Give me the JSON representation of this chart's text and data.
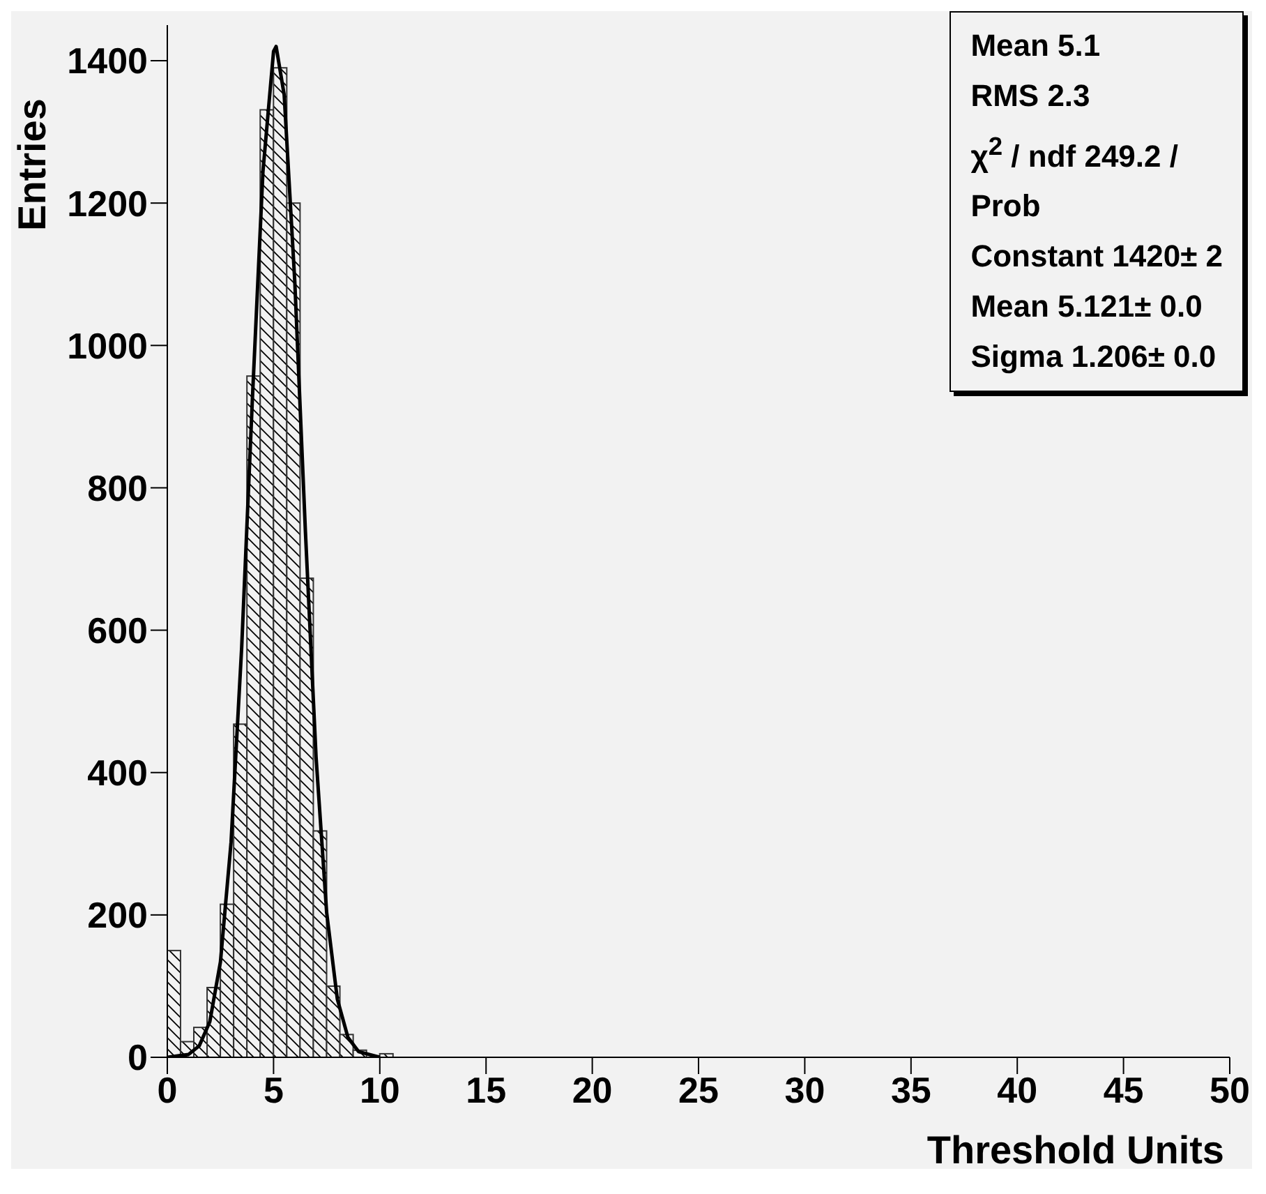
{
  "chart_data": {
    "type": "histogram",
    "xlabel": "Threshold Units",
    "ylabel": "Entries",
    "bins": [
      0,
      0.625,
      1.25,
      1.875,
      2.5,
      3.125,
      3.75,
      4.375,
      5,
      5.625,
      6.25,
      6.875,
      7.5,
      8.125,
      8.75,
      9.375,
      10,
      10.625,
      11.25,
      11.875,
      12.5,
      13.125,
      13.75,
      14.375,
      15,
      15.625,
      16.25,
      16.875,
      17.5,
      18.125,
      18.75,
      19.375,
      20,
      20.625,
      21.25,
      21.875,
      22.5,
      23.125,
      23.75,
      24.375,
      25,
      25.625,
      26.25,
      26.875,
      27.5,
      28.125,
      28.75,
      29.375,
      30,
      30.625,
      31.25,
      31.875,
      32.5,
      33.125,
      33.75,
      34.375,
      35,
      35.625,
      36.25,
      36.875,
      37.5,
      38.125,
      38.75,
      39.375,
      40,
      40.625,
      41.25,
      41.875,
      42.5,
      43.125,
      43.75,
      44.375,
      45,
      45.625,
      46.25,
      46.875,
      47.5,
      48.125,
      48.75,
      49.375,
      50
    ],
    "values": [
      150,
      22,
      42,
      98,
      215,
      468,
      957,
      1331,
      1390,
      1200,
      673,
      318,
      100,
      32,
      10,
      null,
      5,
      0,
      0,
      0,
      0,
      0,
      0,
      0,
      0,
      0,
      0,
      0,
      0,
      0,
      0,
      0,
      0,
      0,
      0,
      0,
      0,
      0,
      0,
      0,
      0,
      0,
      0,
      0,
      0,
      0,
      0,
      0,
      0,
      0,
      0,
      0,
      0,
      0,
      0,
      0,
      0,
      0,
      0,
      0,
      0,
      0,
      0,
      0,
      0,
      0,
      0,
      0,
      0,
      0,
      0,
      0,
      0,
      0,
      0,
      0,
      0,
      0,
      0,
      0
    ],
    "color": "#333333",
    "series": [
      {
        "type": "line",
        "color": "#000000",
        "x": [
          0,
          1,
          1.5,
          2,
          2.5,
          3,
          3.5,
          4,
          4.5,
          5,
          5.121,
          5.5,
          6,
          6.5,
          7,
          7.5,
          8,
          8.5,
          9,
          10
        ],
        "values": [
          0,
          4,
          16,
          50,
          134,
          302,
          576,
          922,
          1244,
          1413,
          1420,
          1352,
          1089,
          738,
          422,
          203,
          82,
          28,
          8,
          0
        ]
      }
    ],
    "xlim": [
      0,
      50
    ],
    "xticks": [
      0,
      5,
      10,
      15,
      20,
      25,
      30,
      35,
      40,
      45,
      50
    ],
    "ylim": [
      0,
      1450
    ],
    "yticks": [
      0,
      200,
      400,
      600,
      800,
      1000,
      1200,
      1400
    ],
    "grid": false,
    "legend": false,
    "annotations": [
      "Mean 5.1",
      "RMS 2.3",
      "χ$^{2}$ / ndf 249.2 /",
      "Prob",
      "Constant 1420± 2",
      "Mean 5.121± 0.0",
      "Sigma 1.206± 0.0"
    ]
  }
}
